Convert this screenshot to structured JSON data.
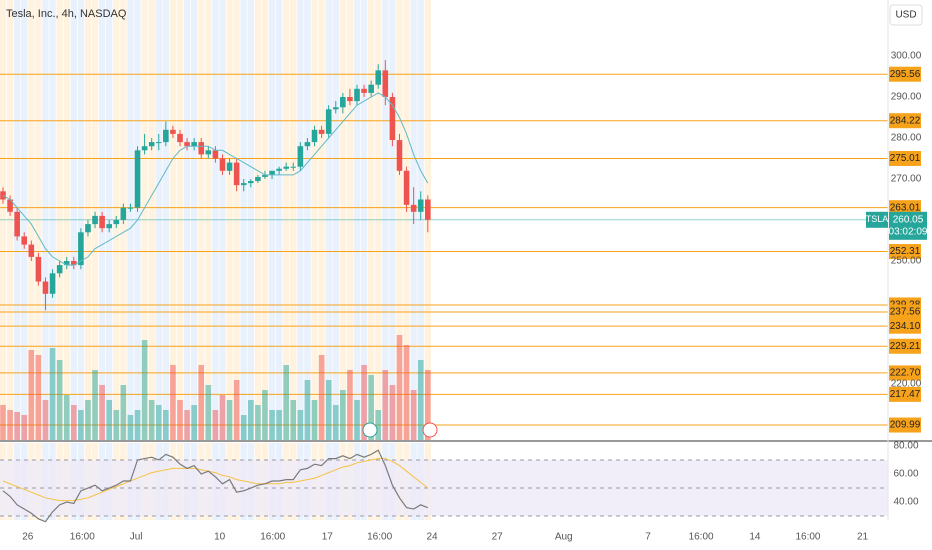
{
  "header": {
    "title": "Tesla, Inc., 4h, NASDAQ",
    "currency": "USD"
  },
  "chart_data": {
    "type": "candlestick",
    "open": [
      267,
      265,
      262,
      256,
      254,
      251,
      245,
      242,
      247,
      249,
      250,
      249,
      257,
      259,
      261,
      258,
      259,
      260,
      263,
      263,
      277,
      278,
      279,
      279,
      282,
      281,
      279,
      278,
      279,
      276,
      277,
      275,
      272,
      274,
      268.5,
      269,
      269.5,
      270.5,
      271,
      272,
      272.5,
      273,
      273,
      278,
      279,
      282,
      281,
      287,
      287.5,
      290,
      289,
      292,
      291,
      293,
      296.5,
      290,
      279.5,
      272,
      263.7,
      262,
      265
    ],
    "high": [
      268,
      266,
      263,
      257,
      255,
      252,
      246,
      248,
      250,
      251,
      251,
      258,
      260,
      262,
      262,
      260,
      261,
      264,
      264,
      278,
      281,
      280,
      281,
      284,
      283,
      282,
      280,
      280,
      280,
      278,
      278,
      276,
      275,
      275,
      270,
      270,
      271,
      272,
      272,
      273,
      274,
      274,
      279,
      280,
      283,
      283,
      288,
      289,
      291,
      292,
      293,
      293,
      294,
      298,
      299,
      291,
      281,
      273,
      268,
      267,
      266
    ],
    "low": [
      264,
      261,
      255,
      253,
      250,
      244,
      238,
      241,
      246,
      248,
      248,
      248,
      256,
      258,
      257,
      257,
      258,
      259,
      262,
      262,
      276,
      277,
      277,
      278,
      280,
      278,
      277,
      277,
      275,
      275,
      274,
      271,
      271,
      267,
      267,
      268,
      269,
      270,
      270,
      271,
      272,
      272,
      272,
      277,
      278,
      280,
      280,
      286,
      286,
      288,
      288,
      290,
      290,
      292,
      288,
      278,
      271,
      262,
      259,
      260,
      257
    ],
    "close": [
      265,
      262,
      256,
      254,
      251,
      245,
      242,
      247,
      249,
      250,
      249,
      257,
      259,
      261,
      258,
      259,
      260,
      263,
      263,
      277,
      278,
      279,
      279,
      282,
      281,
      279,
      278,
      279,
      276,
      277,
      275,
      272,
      274,
      268.5,
      269,
      269.5,
      270.5,
      271,
      272,
      272.5,
      273,
      273,
      278,
      279,
      282,
      281,
      287,
      287.5,
      290,
      289,
      292,
      291,
      293,
      296.5,
      290,
      279.5,
      272,
      263.7,
      262,
      265,
      260.05
    ],
    "up_color": "#26a69a",
    "down_color": "#ef5350",
    "ma_values": [
      266,
      265,
      263,
      261,
      259,
      256,
      253,
      251,
      250,
      249,
      249,
      250,
      251,
      253,
      254,
      255,
      256,
      257,
      258,
      260,
      263,
      266,
      269,
      272,
      275,
      277,
      278,
      278,
      278,
      278,
      277,
      277,
      276,
      275,
      274,
      273,
      272,
      271,
      271,
      271,
      271,
      271,
      272,
      274,
      276,
      278,
      280,
      282,
      284,
      286,
      288,
      289,
      290,
      291,
      290,
      288,
      285,
      281,
      276,
      272,
      269
    ],
    "ma_color": "#5fb9c9",
    "ylim": [
      206.34,
      313.66
    ],
    "yticks": [
      {
        "value": 300,
        "label": "300.00"
      },
      {
        "value": 290,
        "label": "290.00"
      },
      {
        "value": 280,
        "label": "280.00"
      },
      {
        "value": 270,
        "label": "270.00"
      },
      {
        "value": 250,
        "label": "250.00"
      },
      {
        "value": 220,
        "label": "220.00"
      }
    ],
    "levels": [
      295.56,
      284.22,
      275.01,
      263.01,
      252.31,
      239.28,
      237.56,
      {
        "value": 234.1,
        "label": "234.10"
      },
      229.21,
      {
        "value": 222.7,
        "label": "222.70"
      },
      217.47,
      209.99
    ],
    "level_color": "#f7a21b",
    "last": {
      "symbol": "TSLA",
      "value": 260.05,
      "countdown": "03:02:09",
      "color": "#26a69a"
    },
    "xticks": [
      {
        "value": 3.5,
        "label": "26"
      },
      {
        "value": 11.2,
        "label": "16:00"
      },
      {
        "value": 18.8,
        "label": "Jul"
      },
      {
        "value": 30.6,
        "label": "10"
      },
      {
        "value": 38.1,
        "label": "16:00"
      },
      {
        "value": 45.8,
        "label": "17"
      },
      {
        "value": 53.2,
        "label": "16:00"
      },
      {
        "value": 60.6,
        "label": "24"
      },
      {
        "value": 69.8,
        "label": "27"
      },
      {
        "value": 79.2,
        "label": "Aug"
      },
      {
        "value": 91.1,
        "label": "7"
      },
      {
        "value": 98.6,
        "label": "16:00"
      },
      {
        "value": 106.2,
        "label": "14"
      },
      {
        "value": 113.7,
        "label": "16:00"
      },
      {
        "value": 121.4,
        "label": "21"
      }
    ],
    "volume": [
      35,
      30,
      28,
      25,
      90,
      85,
      40,
      92,
      80,
      45,
      35,
      30,
      40,
      70,
      55,
      40,
      30,
      55,
      25,
      30,
      100,
      40,
      35,
      30,
      75,
      40,
      30,
      35,
      75,
      55,
      30,
      45,
      40,
      60,
      25,
      40,
      35,
      50,
      30,
      30,
      75,
      40,
      30,
      60,
      40,
      85,
      60,
      35,
      50,
      70,
      40,
      75,
      65,
      30,
      70,
      55,
      105,
      95,
      50,
      80,
      70
    ],
    "vlim": [
      0,
      110
    ],
    "rsi": {
      "values": [
        48,
        44,
        38,
        35,
        32,
        28,
        26,
        33,
        38,
        40,
        39,
        48,
        50,
        52,
        48,
        50,
        52,
        55,
        55,
        70,
        71,
        72,
        70,
        74,
        72,
        67,
        64,
        66,
        60,
        62,
        58,
        53,
        56,
        47,
        48,
        50,
        52,
        53,
        55,
        55,
        56,
        56,
        63,
        64,
        67,
        66,
        71,
        71,
        73,
        71,
        74,
        72,
        74,
        77,
        66,
        52,
        43,
        36,
        35,
        38,
        36
      ],
      "ma": [
        55,
        53,
        51,
        49,
        47,
        45,
        43,
        42,
        41,
        41,
        41,
        42,
        43,
        45,
        47,
        49,
        51,
        53,
        55,
        57,
        59,
        61,
        62,
        63,
        64,
        64,
        64,
        64,
        63,
        62,
        61,
        59,
        58,
        56,
        55,
        54,
        53,
        53,
        53,
        53,
        54,
        54,
        55,
        56,
        57,
        59,
        61,
        63,
        65,
        66,
        68,
        69,
        70,
        71,
        71,
        69,
        66,
        62,
        58,
        54,
        50
      ],
      "ylim": [
        28.6,
        80.7
      ],
      "yticks": [
        {
          "value": 80,
          "label": "80.00"
        },
        {
          "value": 60,
          "label": "60.00"
        },
        {
          "value": 40,
          "label": "40.00"
        }
      ],
      "band": [
        30,
        70
      ],
      "levels": [
        70,
        50,
        30
      ],
      "color": "#7a7a7a",
      "ma_color": "#f5c342",
      "band_color": "#efeaf8"
    }
  }
}
